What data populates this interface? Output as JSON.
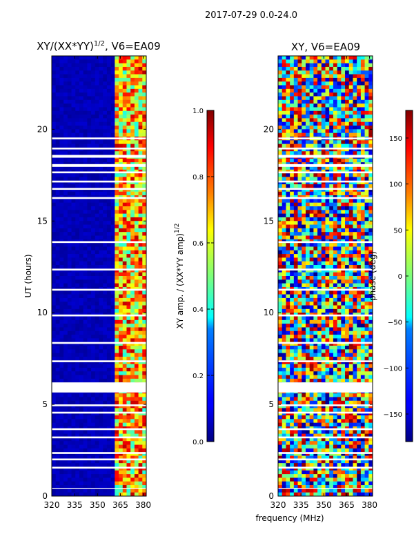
{
  "suptitle": "2017-07-29 0.0-24.0",
  "chart_data": [
    {
      "type": "heatmap",
      "title": "XY/(XX*YY)",
      "title_superscript": "1/2",
      "title_suffix": ", V6=EA09",
      "xlabel": "",
      "ylabel": "UT (hours)",
      "xlim": [
        320,
        382
      ],
      "ylim": [
        0,
        24
      ],
      "xticks": [
        320,
        335,
        350,
        365,
        380
      ],
      "yticks": [
        0,
        5,
        10,
        15,
        20
      ],
      "colorbar": {
        "label": "XY amp. / (XX*YY amp)",
        "label_superscript": "1/2",
        "range": [
          0.0,
          1.0
        ],
        "ticks": [
          "0.0",
          "0.2",
          "0.4",
          "0.6",
          "0.8",
          "1.0"
        ],
        "colormap": "jet"
      },
      "features": "dark blue (~0.05) below ~362 MHz; bright cyan/yellow/red bands between ~362 and ~380 MHz; white gaps where data are flagged"
    },
    {
      "type": "heatmap",
      "title": "XY, V6=EA09",
      "xlabel": "frequency (MHz)",
      "ylabel": "",
      "xlim": [
        320,
        382
      ],
      "ylim": [
        0,
        24
      ],
      "xticks": [
        320,
        335,
        350,
        365,
        380
      ],
      "yticks": [
        0,
        5,
        10,
        15,
        20
      ],
      "colorbar": {
        "label": "phase (deg)",
        "range": [
          -180,
          180
        ],
        "ticks": [
          "−150",
          "−100",
          "−50",
          "0",
          "50",
          "100",
          "150"
        ],
        "tick_values": [
          -150,
          -100,
          -50,
          0,
          50,
          100,
          150
        ],
        "colormap": "jet"
      },
      "features": "noisy phase values spanning the full -180..180 range; white gaps at flagged times"
    }
  ],
  "flagged_gaps_hours": [
    [
      19.55,
      19.45
    ],
    [
      19.0,
      18.9
    ],
    [
      18.6,
      18.45
    ],
    [
      18.1,
      17.95
    ],
    [
      17.7,
      17.6
    ],
    [
      17.2,
      17.1
    ],
    [
      16.8,
      16.7
    ],
    [
      16.3,
      16.2
    ],
    [
      13.9,
      13.8
    ],
    [
      12.4,
      12.3
    ],
    [
      11.3,
      11.2
    ],
    [
      9.9,
      9.8
    ],
    [
      8.4,
      8.3
    ],
    [
      7.4,
      7.3
    ],
    [
      6.2,
      5.65
    ],
    [
      5.0,
      4.9
    ],
    [
      4.6,
      4.5
    ],
    [
      3.7,
      3.6
    ],
    [
      3.25,
      3.15
    ],
    [
      2.4,
      2.3
    ],
    [
      2.05,
      1.95
    ],
    [
      1.6,
      1.5
    ],
    [
      0.45,
      0.4
    ]
  ]
}
